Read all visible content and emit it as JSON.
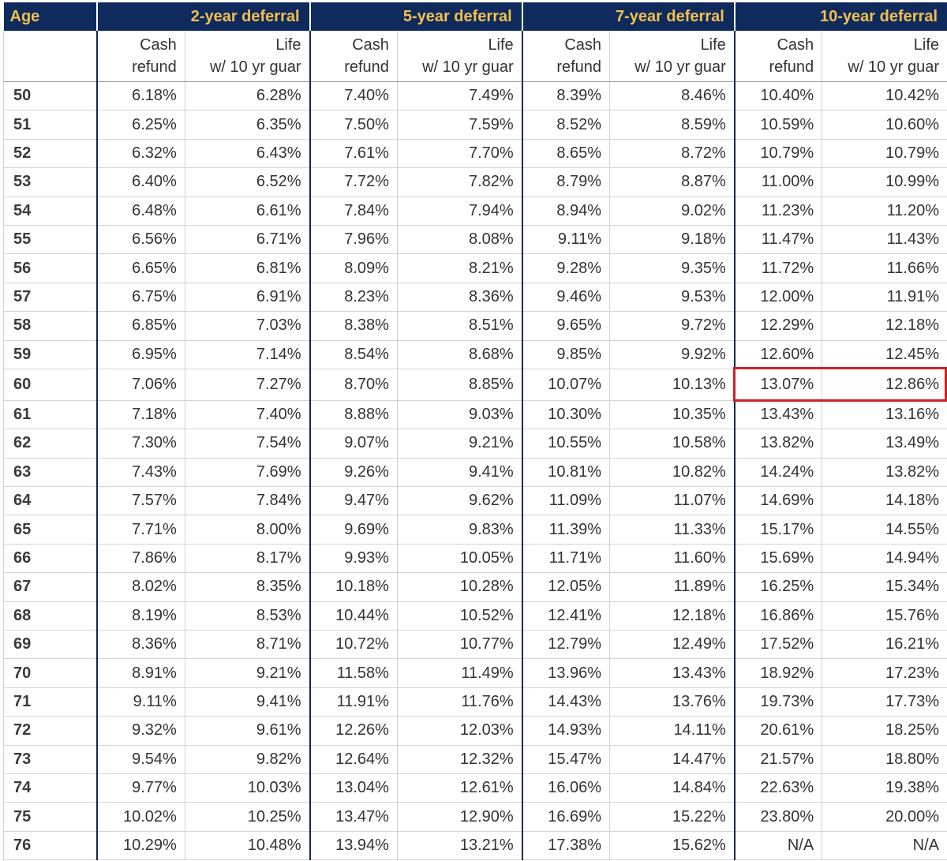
{
  "table": {
    "group_headers": [
      "Age",
      "2-year deferral",
      "5-year deferral",
      "7-year deferral",
      "10-year deferral"
    ],
    "sub_headers": {
      "cash": [
        "Cash",
        "refund"
      ],
      "life": [
        "Life",
        "w/ 10 yr guar"
      ]
    },
    "rows": [
      {
        "age": "50",
        "v": [
          "6.18%",
          "6.28%",
          "7.40%",
          "7.49%",
          "8.39%",
          "8.46%",
          "10.40%",
          "10.42%"
        ]
      },
      {
        "age": "51",
        "v": [
          "6.25%",
          "6.35%",
          "7.50%",
          "7.59%",
          "8.52%",
          "8.59%",
          "10.59%",
          "10.60%"
        ]
      },
      {
        "age": "52",
        "v": [
          "6.32%",
          "6.43%",
          "7.61%",
          "7.70%",
          "8.65%",
          "8.72%",
          "10.79%",
          "10.79%"
        ]
      },
      {
        "age": "53",
        "v": [
          "6.40%",
          "6.52%",
          "7.72%",
          "7.82%",
          "8.79%",
          "8.87%",
          "11.00%",
          "10.99%"
        ]
      },
      {
        "age": "54",
        "v": [
          "6.48%",
          "6.61%",
          "7.84%",
          "7.94%",
          "8.94%",
          "9.02%",
          "11.23%",
          "11.20%"
        ]
      },
      {
        "age": "55",
        "v": [
          "6.56%",
          "6.71%",
          "7.96%",
          "8.08%",
          "9.11%",
          "9.18%",
          "11.47%",
          "11.43%"
        ]
      },
      {
        "age": "56",
        "v": [
          "6.65%",
          "6.81%",
          "8.09%",
          "8.21%",
          "9.28%",
          "9.35%",
          "11.72%",
          "11.66%"
        ]
      },
      {
        "age": "57",
        "v": [
          "6.75%",
          "6.91%",
          "8.23%",
          "8.36%",
          "9.46%",
          "9.53%",
          "12.00%",
          "11.91%"
        ]
      },
      {
        "age": "58",
        "v": [
          "6.85%",
          "7.03%",
          "8.38%",
          "8.51%",
          "9.65%",
          "9.72%",
          "12.29%",
          "12.18%"
        ]
      },
      {
        "age": "59",
        "v": [
          "6.95%",
          "7.14%",
          "8.54%",
          "8.68%",
          "9.85%",
          "9.92%",
          "12.60%",
          "12.45%"
        ]
      },
      {
        "age": "60",
        "v": [
          "7.06%",
          "7.27%",
          "8.70%",
          "8.85%",
          "10.07%",
          "10.13%",
          "13.07%",
          "12.86%"
        ],
        "highlight": true
      },
      {
        "age": "61",
        "v": [
          "7.18%",
          "7.40%",
          "8.88%",
          "9.03%",
          "10.30%",
          "10.35%",
          "13.43%",
          "13.16%"
        ]
      },
      {
        "age": "62",
        "v": [
          "7.30%",
          "7.54%",
          "9.07%",
          "9.21%",
          "10.55%",
          "10.58%",
          "13.82%",
          "13.49%"
        ]
      },
      {
        "age": "63",
        "v": [
          "7.43%",
          "7.69%",
          "9.26%",
          "9.41%",
          "10.81%",
          "10.82%",
          "14.24%",
          "13.82%"
        ]
      },
      {
        "age": "64",
        "v": [
          "7.57%",
          "7.84%",
          "9.47%",
          "9.62%",
          "11.09%",
          "11.07%",
          "14.69%",
          "14.18%"
        ]
      },
      {
        "age": "65",
        "v": [
          "7.71%",
          "8.00%",
          "9.69%",
          "9.83%",
          "11.39%",
          "11.33%",
          "15.17%",
          "14.55%"
        ]
      },
      {
        "age": "66",
        "v": [
          "7.86%",
          "8.17%",
          "9.93%",
          "10.05%",
          "11.71%",
          "11.60%",
          "15.69%",
          "14.94%"
        ]
      },
      {
        "age": "67",
        "v": [
          "8.02%",
          "8.35%",
          "10.18%",
          "10.28%",
          "12.05%",
          "11.89%",
          "16.25%",
          "15.34%"
        ]
      },
      {
        "age": "68",
        "v": [
          "8.19%",
          "8.53%",
          "10.44%",
          "10.52%",
          "12.41%",
          "12.18%",
          "16.86%",
          "15.76%"
        ]
      },
      {
        "age": "69",
        "v": [
          "8.36%",
          "8.71%",
          "10.72%",
          "10.77%",
          "12.79%",
          "12.49%",
          "17.52%",
          "16.21%"
        ]
      },
      {
        "age": "70",
        "v": [
          "8.91%",
          "9.21%",
          "11.58%",
          "11.49%",
          "13.96%",
          "13.43%",
          "18.92%",
          "17.23%"
        ]
      },
      {
        "age": "71",
        "v": [
          "9.11%",
          "9.41%",
          "11.91%",
          "11.76%",
          "14.43%",
          "13.76%",
          "19.73%",
          "17.73%"
        ]
      },
      {
        "age": "72",
        "v": [
          "9.32%",
          "9.61%",
          "12.26%",
          "12.03%",
          "14.93%",
          "14.11%",
          "20.61%",
          "18.25%"
        ]
      },
      {
        "age": "73",
        "v": [
          "9.54%",
          "9.82%",
          "12.64%",
          "12.32%",
          "15.47%",
          "14.47%",
          "21.57%",
          "18.80%"
        ]
      },
      {
        "age": "74",
        "v": [
          "9.77%",
          "10.03%",
          "13.04%",
          "12.61%",
          "16.06%",
          "14.84%",
          "22.63%",
          "19.38%"
        ]
      },
      {
        "age": "75",
        "v": [
          "10.02%",
          "10.25%",
          "13.47%",
          "12.90%",
          "16.69%",
          "15.22%",
          "23.80%",
          "20.00%"
        ]
      },
      {
        "age": "76",
        "v": [
          "10.29%",
          "10.48%",
          "13.94%",
          "13.21%",
          "17.38%",
          "15.62%",
          "N/A",
          "N/A"
        ]
      }
    ]
  },
  "colors": {
    "header_bg": "#0f2a5c",
    "header_text": "#f2c14e",
    "highlight_border": "#d21f26"
  }
}
